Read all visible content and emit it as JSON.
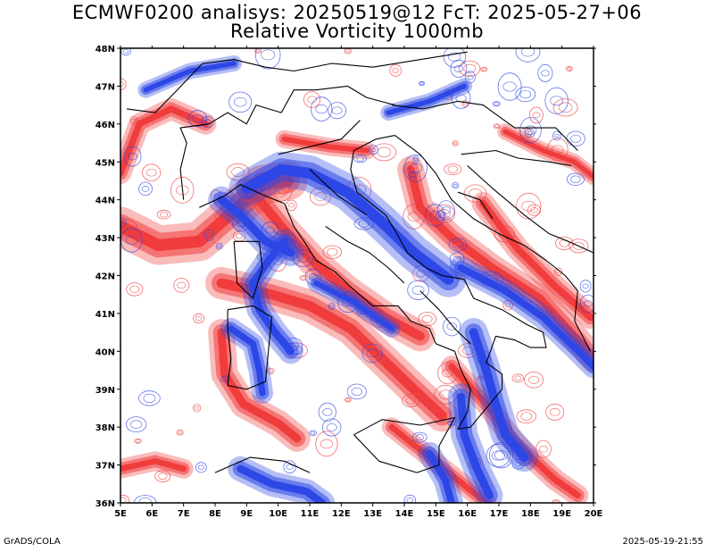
{
  "header": {
    "title_line1": "ECMWF0200 analisys: 20250519@12 FcT: 2025-05-27+06",
    "title_line2": "Relative Vorticity 1000mb"
  },
  "map": {
    "lon_range": [
      5,
      20
    ],
    "lat_range": [
      36,
      48
    ],
    "lon_ticks": [
      "5E",
      "6E",
      "7E",
      "8E",
      "9E",
      "10E",
      "11E",
      "12E",
      "13E",
      "14E",
      "15E",
      "16E",
      "17E",
      "18E",
      "19E",
      "20E"
    ],
    "lat_ticks": [
      "36N",
      "37N",
      "38N",
      "39N",
      "40N",
      "41N",
      "42N",
      "43N",
      "44N",
      "45N",
      "46N",
      "47N",
      "48N"
    ],
    "colors": {
      "positive": "#f03c3c",
      "negative": "#2c47e6",
      "coastline": "#000000"
    }
  },
  "footer": {
    "left": "GrADS/COLA",
    "right": "2025-05-19-21:55"
  }
}
